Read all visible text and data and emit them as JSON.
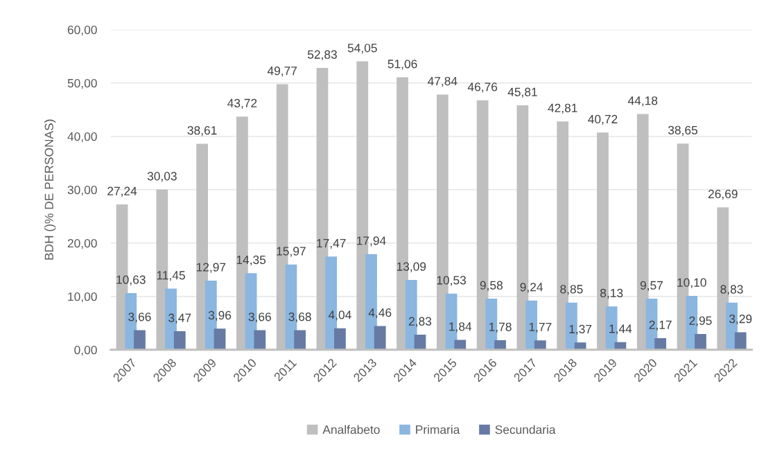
{
  "chart_data": {
    "type": "bar",
    "ylabel": "BDH ()% DE PERSONAS)",
    "categories": [
      "2007",
      "2008",
      "2009",
      "2010",
      "2011",
      "2012",
      "2013",
      "2014",
      "2015",
      "2016",
      "2017",
      "2018",
      "2019",
      "2020",
      "2021",
      "2022"
    ],
    "series": [
      {
        "name": "Analfabeto",
        "color": "#bfbfbf",
        "values": [
          27.24,
          30.03,
          38.61,
          43.72,
          49.77,
          52.83,
          54.05,
          51.06,
          47.84,
          46.76,
          45.81,
          42.81,
          40.72,
          44.18,
          38.65,
          26.69
        ],
        "value_labels": [
          "27,24",
          "30,03",
          "38,61",
          "43,72",
          "49,77",
          "52,83",
          "54,05",
          "51,06",
          "47,84",
          "46,76",
          "45,81",
          "42,81",
          "40,72",
          "44,18",
          "38,65",
          "26,69"
        ]
      },
      {
        "name": "Primaria",
        "color": "#8ab6e0",
        "values": [
          10.63,
          11.45,
          12.97,
          14.35,
          15.97,
          17.47,
          17.94,
          13.09,
          10.53,
          9.58,
          9.24,
          8.85,
          8.13,
          9.57,
          10.1,
          8.83
        ],
        "value_labels": [
          "10,63",
          "11,45",
          "12,97",
          "14,35",
          "15,97",
          "17,47",
          "17,94",
          "13,09",
          "10,53",
          "9,58",
          "9,24",
          "8,85",
          "8,13",
          "9,57",
          "10,10",
          "8,83"
        ]
      },
      {
        "name": "Secundaria",
        "color": "#667aa3",
        "values": [
          3.66,
          3.47,
          3.96,
          3.66,
          3.68,
          4.04,
          4.46,
          2.83,
          1.84,
          1.78,
          1.77,
          1.37,
          1.44,
          2.17,
          2.95,
          3.29
        ],
        "value_labels": [
          "3,66",
          "3,47",
          "3,96",
          "3,66",
          "3,68",
          "4,04",
          "4,46",
          "2,83",
          "1,84",
          "1,78",
          "1,77",
          "1,37",
          "1,44",
          "2,17",
          "2,95",
          "3,29"
        ]
      }
    ],
    "ylim": [
      0,
      60
    ],
    "yticks": [
      {
        "value": 0,
        "label": "0,00"
      },
      {
        "value": 10,
        "label": "10,00"
      },
      {
        "value": 20,
        "label": "20,00"
      },
      {
        "value": 30,
        "label": "30,00"
      },
      {
        "value": 40,
        "label": "40,00"
      },
      {
        "value": 50,
        "label": "50,00"
      },
      {
        "value": 60,
        "label": "60,00"
      }
    ],
    "grid": "y",
    "legend": "bottom"
  }
}
